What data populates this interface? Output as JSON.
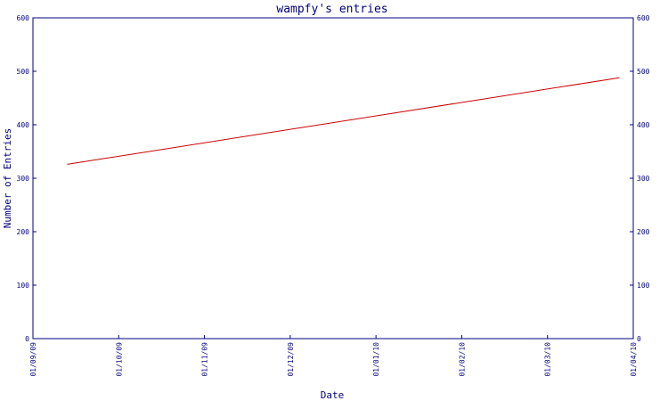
{
  "chart_data": {
    "type": "line",
    "title": "wampfy's entries",
    "xlabel": "Date",
    "ylabel": "Number of Entries",
    "ylim": [
      0,
      600
    ],
    "yticks": [
      "0",
      "100",
      "200",
      "300",
      "400",
      "500",
      "600"
    ],
    "y_ticks_both_sides": true,
    "grid": false,
    "x_categories": [
      "01/09/09",
      "01/10/09",
      "01/11/09",
      "01/12/09",
      "01/01/10",
      "01/02/10",
      "01/03/10",
      "01/04/10"
    ],
    "series": [
      {
        "points": [
          {
            "x": "2009-09-13",
            "y": 326
          },
          {
            "x": "2010-03-27",
            "y": 488
          }
        ]
      }
    ],
    "colors": {
      "axis": "#000080",
      "line": "#cc0000",
      "text": "#000080"
    }
  }
}
